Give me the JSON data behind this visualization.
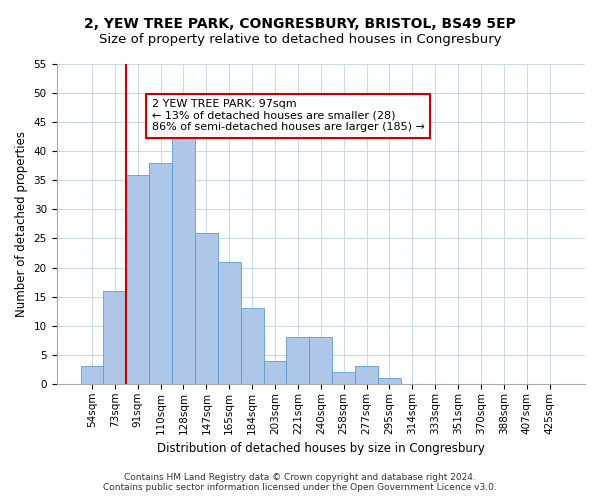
{
  "title1": "2, YEW TREE PARK, CONGRESBURY, BRISTOL, BS49 5EP",
  "title2": "Size of property relative to detached houses in Congresbury",
  "xlabel": "Distribution of detached houses by size in Congresbury",
  "ylabel": "Number of detached properties",
  "categories": [
    "54sqm",
    "73sqm",
    "91sqm",
    "110sqm",
    "128sqm",
    "147sqm",
    "165sqm",
    "184sqm",
    "203sqm",
    "221sqm",
    "240sqm",
    "258sqm",
    "277sqm",
    "295sqm",
    "314sqm",
    "333sqm",
    "351sqm",
    "370sqm",
    "388sqm",
    "407sqm",
    "425sqm"
  ],
  "values": [
    3,
    16,
    36,
    38,
    44,
    26,
    21,
    13,
    4,
    8,
    8,
    2,
    3,
    1,
    0,
    0,
    0,
    0,
    0,
    0,
    0
  ],
  "bar_color": "#aec6e8",
  "bar_edge_color": "#5a9fd4",
  "vline_index": 2,
  "vline_color": "#cc0000",
  "annotation_line1": "2 YEW TREE PARK: 97sqm",
  "annotation_line2": "← 13% of detached houses are smaller (28)",
  "annotation_line3": "86% of semi-detached houses are larger (185) →",
  "annotation_box_color": "#ffffff",
  "annotation_box_edge": "#cc0000",
  "ylim": [
    0,
    55
  ],
  "yticks": [
    0,
    5,
    10,
    15,
    20,
    25,
    30,
    35,
    40,
    45,
    50,
    55
  ],
  "footer1": "Contains HM Land Registry data © Crown copyright and database right 2024.",
  "footer2": "Contains public sector information licensed under the Open Government Licence v3.0.",
  "bg_color": "#ffffff",
  "grid_color": "#c8d8e8",
  "title1_fontsize": 10,
  "title2_fontsize": 9.5,
  "xlabel_fontsize": 8.5,
  "ylabel_fontsize": 8.5,
  "tick_fontsize": 7.5,
  "annotation_fontsize": 8,
  "footer_fontsize": 6.5
}
